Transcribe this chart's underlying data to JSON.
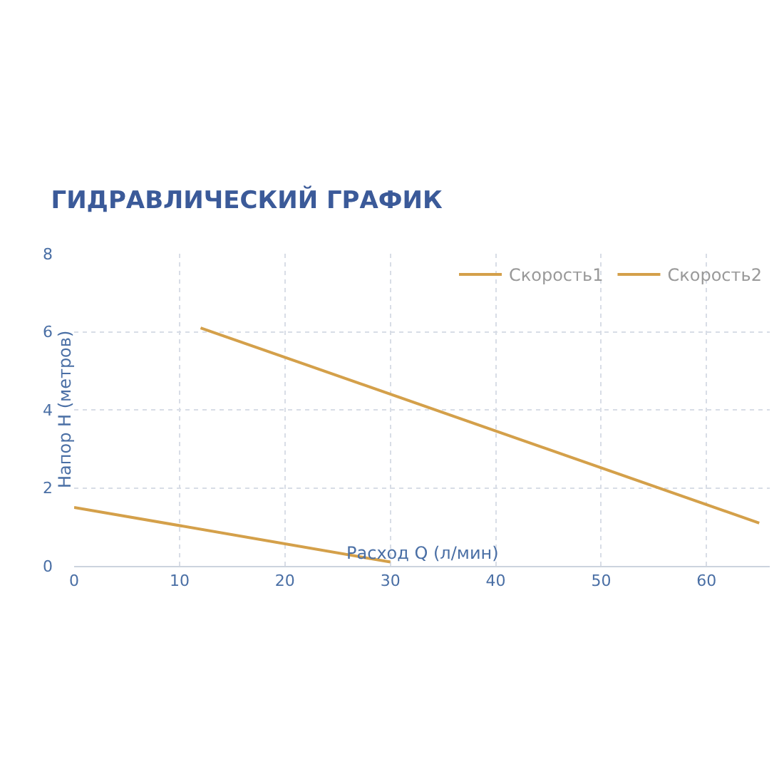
{
  "chart_data": {
    "type": "line",
    "title": "ГИДРАВЛИЧЕСКИЙ ГРАФИК",
    "xlabel": "Расход Q (л/мин)",
    "ylabel": "Напор Н (метров)",
    "series": [
      {
        "name": "Скорость1",
        "color": "#d4a04a",
        "x": [
          0,
          30
        ],
        "values": [
          1.5,
          0.1
        ]
      },
      {
        "name": "Скорость2",
        "color": "#d4a04a",
        "x": [
          12,
          65
        ],
        "values": [
          6.1,
          1.1
        ]
      }
    ],
    "xlim": [
      0,
      66
    ],
    "xticks": [
      0,
      10,
      20,
      30,
      40,
      50,
      60
    ],
    "ylim": [
      0,
      8
    ],
    "yticks": [
      0,
      2,
      4,
      6,
      8
    ],
    "grid": true,
    "legend": "top right",
    "marker": "none",
    "line_style": "solid"
  }
}
